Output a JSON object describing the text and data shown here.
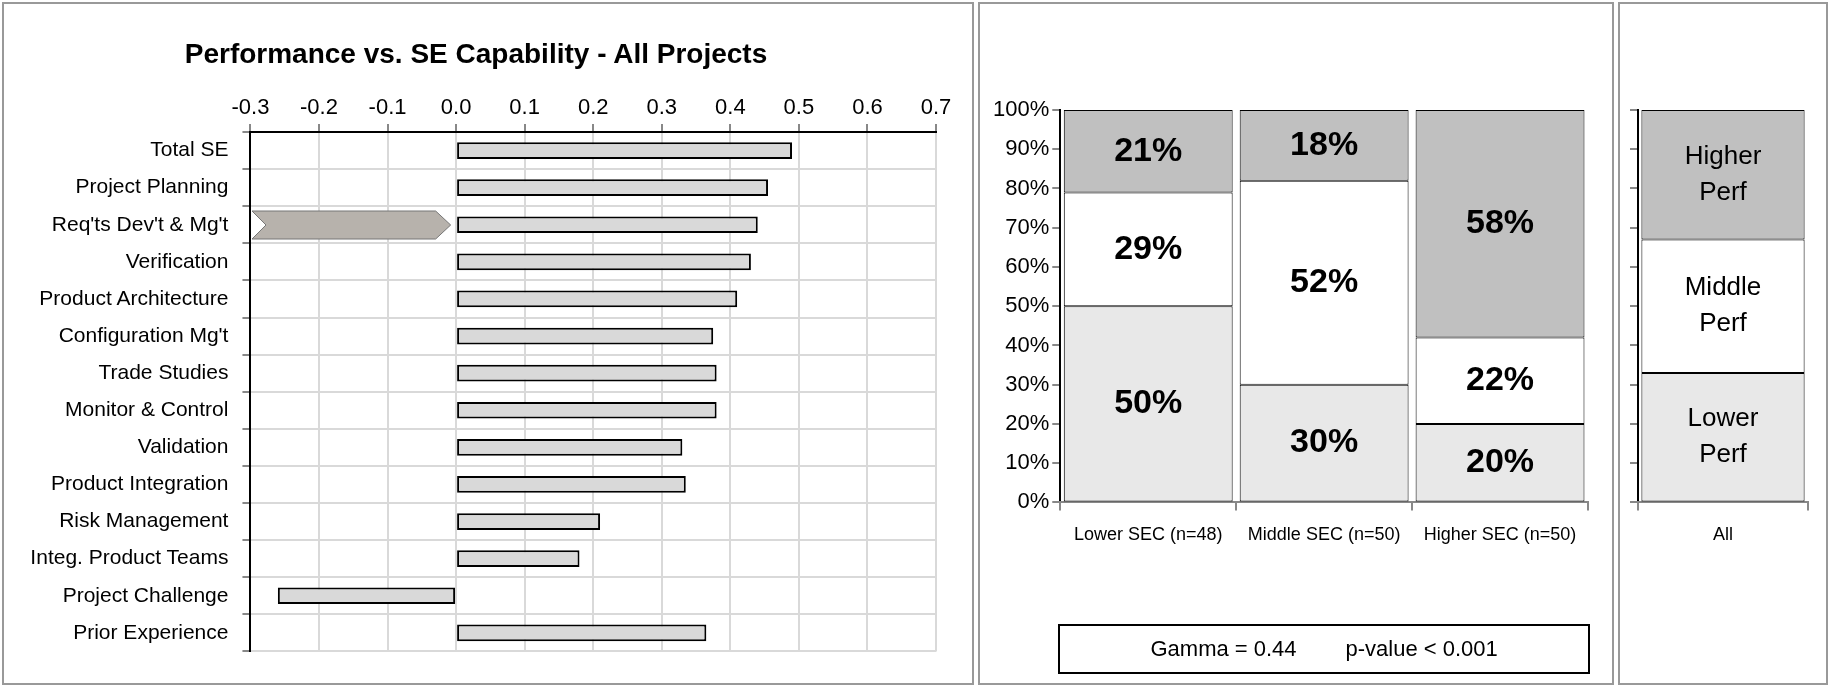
{
  "chart_data": [
    {
      "type": "bar",
      "title": "Performance vs. SE Capability - All Projects",
      "orientation": "horizontal",
      "categories": [
        "Total SE",
        "Project Planning",
        "Req'ts Dev't & Mg't",
        "Verification",
        "Product Architecture",
        "Configuration Mg't",
        "Trade Studies",
        "Monitor & Control",
        "Validation",
        "Product Integration",
        "Risk Management",
        "Integ. Product Teams",
        "Project Challenge",
        "Prior Experience"
      ],
      "values": [
        0.49,
        0.455,
        0.44,
        0.43,
        0.41,
        0.375,
        0.38,
        0.38,
        0.33,
        0.335,
        0.21,
        0.18,
        -0.26,
        0.365
      ],
      "color": "#d9d9d9",
      "xlim": [
        -0.3,
        0.7
      ],
      "xticks": [
        -0.3,
        -0.2,
        -0.1,
        {
          "value": 0,
          "label": "0.0"
        },
        0.1,
        0.2,
        0.3,
        0.4,
        0.5,
        0.6,
        0.7
      ],
      "grid": true
    },
    {
      "type": "bar",
      "stacked": true,
      "categories": [
        "Lower SEC (n=48)",
        "Middle SEC (n=50)",
        "Higher SEC (n=50)"
      ],
      "series": [
        {
          "color": "#e8e8e8",
          "values": [
            50,
            30,
            20
          ],
          "value_labels": [
            "50%",
            "30%",
            "20%"
          ]
        },
        {
          "color": "#ffffff",
          "values": [
            29,
            52,
            22
          ],
          "value_labels": [
            "29%",
            "52%",
            "22%"
          ]
        },
        {
          "color": "#c0c0c0",
          "values": [
            21,
            18,
            58
          ],
          "value_labels": [
            "21%",
            "18%",
            "58%"
          ]
        }
      ],
      "ylim": [
        0,
        100
      ],
      "yticks": [
        {
          "value": 0,
          "label": "0%"
        },
        {
          "value": 10,
          "label": "10%"
        },
        {
          "value": 20,
          "label": "20%"
        },
        {
          "value": 30,
          "label": "30%"
        },
        {
          "value": 40,
          "label": "40%"
        },
        {
          "value": 50,
          "label": "50%"
        },
        {
          "value": 60,
          "label": "60%"
        },
        {
          "value": 70,
          "label": "70%"
        },
        {
          "value": 80,
          "label": "80%"
        },
        {
          "value": 90,
          "label": "90%"
        },
        {
          "value": 100,
          "label": "100%"
        }
      ],
      "annotations": [
        "Gamma = 0.44        p-value < 0.001"
      ]
    },
    {
      "type": "bar",
      "stacked": true,
      "categories": [
        "All"
      ],
      "series": [
        {
          "name": "Lower Perf",
          "color": "#e8e8e8",
          "values": [
            33
          ]
        },
        {
          "name": "Middle Perf",
          "color": "#ffffff",
          "values": [
            34
          ]
        },
        {
          "name": "Higher Perf",
          "color": "#c0c0c0",
          "values": [
            33
          ]
        }
      ],
      "ylim": [
        0,
        100
      ],
      "yticks": [
        0,
        10,
        20,
        30,
        40,
        50,
        60,
        70,
        80,
        90,
        100
      ],
      "tick_labels": "x"
    }
  ]
}
